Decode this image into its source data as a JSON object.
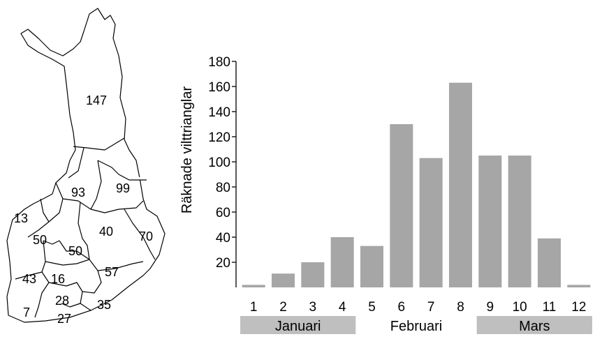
{
  "map": {
    "regions": [
      {
        "id": "lapland",
        "count": "147"
      },
      {
        "id": "north-ostrobothnia",
        "count": "93"
      },
      {
        "id": "kainuu",
        "count": "99"
      },
      {
        "id": "west-coast",
        "count": "13"
      },
      {
        "id": "ostrobothnia",
        "count": "50"
      },
      {
        "id": "central-finland",
        "count": "50"
      },
      {
        "id": "north-savo",
        "count": "40"
      },
      {
        "id": "north-karelia",
        "count": "70"
      },
      {
        "id": "southwest-inland",
        "count": "43"
      },
      {
        "id": "pirkanmaa",
        "count": "16"
      },
      {
        "id": "south-savo",
        "count": "57"
      },
      {
        "id": "southwest",
        "count": "7"
      },
      {
        "id": "tavastia",
        "count": "28"
      },
      {
        "id": "uusimaa",
        "count": "27"
      },
      {
        "id": "southeast",
        "count": "35"
      }
    ],
    "colors": {
      "fill": "#ffffff",
      "stroke": "#000000"
    }
  },
  "chart_data": {
    "type": "bar",
    "categories": [
      "1",
      "2",
      "3",
      "4",
      "5",
      "6",
      "7",
      "8",
      "9",
      "10",
      "11",
      "12"
    ],
    "values": [
      2,
      11,
      20,
      40,
      33,
      130,
      103,
      163,
      105,
      105,
      39,
      2
    ],
    "ylabel": "Räknade vilttrianglar",
    "xlabel": "",
    "ylim": [
      0,
      180
    ],
    "yticks": [
      20,
      40,
      60,
      80,
      100,
      120,
      140,
      160,
      180
    ],
    "grid": false,
    "legend": "none",
    "bar_color": "#a6a6a6",
    "month_bands": [
      {
        "label": "Januari",
        "from": 1,
        "to": 4,
        "shaded": true
      },
      {
        "label": "Februari",
        "from": 5,
        "to": 8,
        "shaded": false
      },
      {
        "label": "Mars",
        "from": 9,
        "to": 12,
        "shaded": true
      }
    ]
  }
}
